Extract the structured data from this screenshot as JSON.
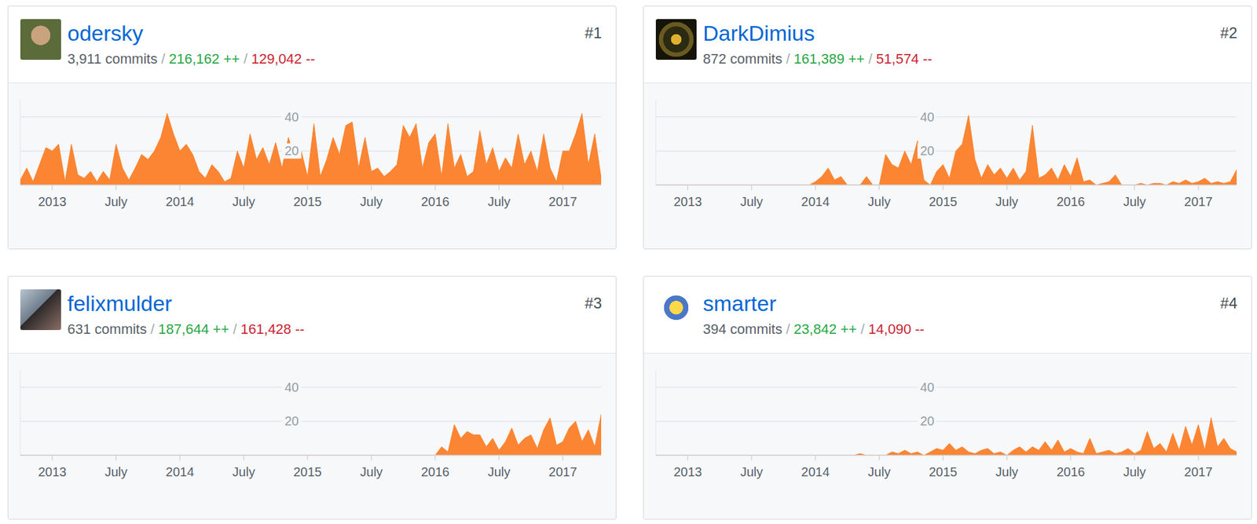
{
  "chart_data": [
    {
      "type": "area",
      "title": "odersky",
      "rank": "#1",
      "stats": [
        "3,911 commits",
        "216,162 ++",
        "129,042 --"
      ],
      "separator": "/",
      "x": [
        2012.75,
        2012.8,
        2012.85,
        2012.9,
        2012.95,
        2013,
        2013.05,
        2013.1,
        2013.15,
        2013.2,
        2013.25,
        2013.3,
        2013.35,
        2013.4,
        2013.45,
        2013.5,
        2013.55,
        2013.6,
        2013.65,
        2013.7,
        2013.75,
        2013.8,
        2013.85,
        2013.9,
        2013.95,
        2014,
        2014.05,
        2014.1,
        2014.15,
        2014.2,
        2014.25,
        2014.3,
        2014.35,
        2014.4,
        2014.45,
        2014.5,
        2014.55,
        2014.6,
        2014.65,
        2014.7,
        2014.75,
        2014.8,
        2014.85,
        2014.9,
        2014.95,
        2015,
        2015.05,
        2015.1,
        2015.15,
        2015.2,
        2015.25,
        2015.3,
        2015.35,
        2015.4,
        2015.45,
        2015.5,
        2015.55,
        2015.6,
        2015.65,
        2015.7,
        2015.75,
        2015.8,
        2015.85,
        2015.9,
        2015.95,
        2016,
        2016.05,
        2016.1,
        2016.15,
        2016.2,
        2016.25,
        2016.3,
        2016.35,
        2016.4,
        2016.45,
        2016.5,
        2016.55,
        2016.6,
        2016.65,
        2016.7,
        2016.75,
        2016.8,
        2016.85,
        2016.9,
        2016.95,
        2017,
        2017.05,
        2017.1,
        2017.15,
        2017.2,
        2017.25,
        2017.3
      ],
      "values": [
        3,
        10,
        2,
        12,
        22,
        20,
        24,
        2,
        24,
        6,
        4,
        8,
        2,
        8,
        3,
        24,
        10,
        3,
        10,
        18,
        15,
        20,
        28,
        42,
        30,
        20,
        24,
        18,
        8,
        4,
        12,
        8,
        2,
        4,
        20,
        10,
        30,
        15,
        22,
        12,
        25,
        10,
        28,
        15,
        20,
        5,
        36,
        5,
        15,
        28,
        18,
        35,
        37,
        10,
        28,
        8,
        10,
        5,
        8,
        12,
        35,
        28,
        36,
        10,
        25,
        30,
        5,
        36,
        10,
        18,
        5,
        8,
        32,
        12,
        22,
        8,
        16,
        10,
        30,
        12,
        20,
        8,
        30,
        10,
        2,
        20,
        20,
        30,
        42,
        12,
        30,
        4
      ],
      "color": "#fb8532",
      "xlim": [
        2012.75,
        2017.3
      ],
      "xticks": [
        2013,
        {
          "value": 2013.5,
          "label": "July"
        },
        2014,
        {
          "value": 2014.5,
          "label": "July"
        },
        2015,
        {
          "value": 2015.5,
          "label": "July"
        },
        2016,
        {
          "value": 2016.5,
          "label": "July"
        },
        2017
      ],
      "ylim": [
        0,
        50
      ],
      "yticks": [
        20,
        40
      ],
      "grid": true
    },
    {
      "type": "area",
      "title": "DarkDimius",
      "rank": "#2",
      "stats": [
        "872 commits",
        "161,389 ++",
        "51,574 --"
      ],
      "separator": "/",
      "x": [
        2012.75,
        2012.8,
        2012.85,
        2012.9,
        2012.95,
        2013,
        2013.05,
        2013.1,
        2013.15,
        2013.2,
        2013.25,
        2013.3,
        2013.35,
        2013.4,
        2013.45,
        2013.5,
        2013.55,
        2013.6,
        2013.65,
        2013.7,
        2013.75,
        2013.8,
        2013.85,
        2013.9,
        2013.95,
        2014,
        2014.05,
        2014.1,
        2014.15,
        2014.2,
        2014.25,
        2014.3,
        2014.35,
        2014.4,
        2014.45,
        2014.5,
        2014.55,
        2014.6,
        2014.65,
        2014.7,
        2014.75,
        2014.8,
        2014.85,
        2014.9,
        2014.95,
        2015,
        2015.05,
        2015.1,
        2015.15,
        2015.2,
        2015.25,
        2015.3,
        2015.35,
        2015.4,
        2015.45,
        2015.5,
        2015.55,
        2015.6,
        2015.65,
        2015.7,
        2015.75,
        2015.8,
        2015.85,
        2015.9,
        2015.95,
        2016,
        2016.05,
        2016.1,
        2016.15,
        2016.2,
        2016.25,
        2016.3,
        2016.35,
        2016.4,
        2016.45,
        2016.5,
        2016.55,
        2016.6,
        2016.65,
        2016.7,
        2016.75,
        2016.8,
        2016.85,
        2016.9,
        2016.95,
        2017,
        2017.05,
        2017.1,
        2017.15,
        2017.2,
        2017.25,
        2017.3
      ],
      "values": [
        0,
        0,
        0,
        0,
        0,
        0,
        0,
        0,
        0,
        0,
        0,
        0,
        0,
        0,
        0,
        0,
        0,
        0,
        0,
        0,
        0,
        0,
        0,
        0,
        0,
        2,
        5,
        10,
        3,
        5,
        0,
        0,
        0,
        5,
        0,
        0,
        18,
        12,
        10,
        20,
        12,
        26,
        3,
        0,
        8,
        12,
        4,
        20,
        24,
        41,
        15,
        4,
        12,
        6,
        10,
        4,
        10,
        3,
        8,
        35,
        4,
        6,
        10,
        3,
        12,
        5,
        16,
        2,
        3,
        0,
        1,
        2,
        6,
        0,
        0,
        0,
        1,
        0,
        1,
        1,
        0,
        2,
        1,
        3,
        1,
        2,
        4,
        1,
        2,
        1,
        2,
        9
      ],
      "color": "#fb8532",
      "xlim": [
        2012.75,
        2017.3
      ],
      "xticks": [
        2013,
        {
          "value": 2013.5,
          "label": "July"
        },
        2014,
        {
          "value": 2014.5,
          "label": "July"
        },
        2015,
        {
          "value": 2015.5,
          "label": "July"
        },
        2016,
        {
          "value": 2016.5,
          "label": "July"
        },
        2017
      ],
      "ylim": [
        0,
        50
      ],
      "yticks": [
        20,
        40
      ],
      "grid": true
    },
    {
      "type": "area",
      "title": "felixmulder",
      "rank": "#3",
      "stats": [
        "631 commits",
        "187,644 ++",
        "161,428 --"
      ],
      "separator": "/",
      "x": [
        2012.75,
        2012.8,
        2012.85,
        2012.9,
        2012.95,
        2013,
        2013.05,
        2013.1,
        2013.15,
        2013.2,
        2013.25,
        2013.3,
        2013.35,
        2013.4,
        2013.45,
        2013.5,
        2013.55,
        2013.6,
        2013.65,
        2013.7,
        2013.75,
        2013.8,
        2013.85,
        2013.9,
        2013.95,
        2014,
        2014.05,
        2014.1,
        2014.15,
        2014.2,
        2014.25,
        2014.3,
        2014.35,
        2014.4,
        2014.45,
        2014.5,
        2014.55,
        2014.6,
        2014.65,
        2014.7,
        2014.75,
        2014.8,
        2014.85,
        2014.9,
        2014.95,
        2015,
        2015.05,
        2015.1,
        2015.15,
        2015.2,
        2015.25,
        2015.3,
        2015.35,
        2015.4,
        2015.45,
        2015.5,
        2015.55,
        2015.6,
        2015.65,
        2015.7,
        2015.75,
        2015.8,
        2015.85,
        2015.9,
        2015.95,
        2016,
        2016.05,
        2016.1,
        2016.15,
        2016.2,
        2016.25,
        2016.3,
        2016.35,
        2016.4,
        2016.45,
        2016.5,
        2016.55,
        2016.6,
        2016.65,
        2016.7,
        2016.75,
        2016.8,
        2016.85,
        2016.9,
        2016.95,
        2017,
        2017.05,
        2017.1,
        2017.15,
        2017.2,
        2017.25,
        2017.3
      ],
      "values": [
        0,
        0,
        0,
        0,
        0,
        0,
        0,
        0,
        0,
        0,
        0,
        0,
        0,
        0,
        0,
        0,
        0,
        0,
        0,
        0,
        0,
        0,
        0,
        0,
        0,
        0,
        0,
        0,
        0,
        0,
        0,
        0,
        0,
        0,
        0,
        0,
        0,
        0,
        0,
        0,
        0,
        0,
        0,
        0,
        0,
        0,
        0,
        0,
        0,
        0,
        0,
        0,
        0,
        0,
        0,
        0,
        0,
        0,
        0,
        0,
        0,
        0,
        0,
        0,
        0,
        0,
        5,
        2,
        18,
        10,
        14,
        12,
        12,
        5,
        10,
        3,
        8,
        16,
        6,
        10,
        12,
        4,
        15,
        22,
        6,
        8,
        16,
        20,
        8,
        15,
        5,
        24
      ],
      "color": "#fb8532",
      "xlim": [
        2012.75,
        2017.3
      ],
      "xticks": [
        2013,
        {
          "value": 2013.5,
          "label": "July"
        },
        2014,
        {
          "value": 2014.5,
          "label": "July"
        },
        2015,
        {
          "value": 2015.5,
          "label": "July"
        },
        2016,
        {
          "value": 2016.5,
          "label": "July"
        },
        2017
      ],
      "ylim": [
        0,
        50
      ],
      "yticks": [
        20,
        40
      ],
      "grid": true
    },
    {
      "type": "area",
      "title": "smarter",
      "rank": "#4",
      "stats": [
        "394 commits",
        "23,842 ++",
        "14,090 --"
      ],
      "separator": "/",
      "x": [
        2012.75,
        2012.8,
        2012.85,
        2012.9,
        2012.95,
        2013,
        2013.05,
        2013.1,
        2013.15,
        2013.2,
        2013.25,
        2013.3,
        2013.35,
        2013.4,
        2013.45,
        2013.5,
        2013.55,
        2013.6,
        2013.65,
        2013.7,
        2013.75,
        2013.8,
        2013.85,
        2013.9,
        2013.95,
        2014,
        2014.05,
        2014.1,
        2014.15,
        2014.2,
        2014.25,
        2014.3,
        2014.35,
        2014.4,
        2014.45,
        2014.5,
        2014.55,
        2014.6,
        2014.65,
        2014.7,
        2014.75,
        2014.8,
        2014.85,
        2014.9,
        2014.95,
        2015,
        2015.05,
        2015.1,
        2015.15,
        2015.2,
        2015.25,
        2015.3,
        2015.35,
        2015.4,
        2015.45,
        2015.5,
        2015.55,
        2015.6,
        2015.65,
        2015.7,
        2015.75,
        2015.8,
        2015.85,
        2015.9,
        2015.95,
        2016,
        2016.05,
        2016.1,
        2016.15,
        2016.2,
        2016.25,
        2016.3,
        2016.35,
        2016.4,
        2016.45,
        2016.5,
        2016.55,
        2016.6,
        2016.65,
        2016.7,
        2016.75,
        2016.8,
        2016.85,
        2016.9,
        2016.95,
        2017,
        2017.05,
        2017.1,
        2017.15,
        2017.2,
        2017.25,
        2017.3
      ],
      "values": [
        0,
        0,
        0,
        0,
        0,
        0,
        0,
        0,
        0,
        0,
        0,
        0,
        0,
        0,
        0,
        0,
        0,
        0,
        0,
        0,
        0,
        0,
        0,
        0,
        0,
        0,
        0,
        0,
        0,
        0,
        0,
        0,
        1,
        0,
        0,
        0,
        0,
        2,
        1,
        3,
        1,
        2,
        0,
        2,
        4,
        3,
        7,
        3,
        5,
        2,
        1,
        3,
        4,
        1,
        2,
        0,
        3,
        5,
        2,
        5,
        3,
        8,
        3,
        9,
        2,
        4,
        2,
        1,
        10,
        1,
        2,
        3,
        1,
        2,
        4,
        1,
        3,
        14,
        4,
        7,
        2,
        13,
        3,
        17,
        6,
        18,
        3,
        22,
        5,
        10,
        4,
        2
      ],
      "color": "#fb8532",
      "xlim": [
        2012.75,
        2017.3
      ],
      "xticks": [
        2013,
        {
          "value": 2013.5,
          "label": "July"
        },
        2014,
        {
          "value": 2014.5,
          "label": "July"
        },
        2015,
        {
          "value": 2015.5,
          "label": "July"
        },
        2016,
        {
          "value": 2016.5,
          "label": "July"
        },
        2017
      ],
      "ylim": [
        0,
        50
      ],
      "yticks": [
        20,
        40
      ],
      "grid": true
    }
  ]
}
